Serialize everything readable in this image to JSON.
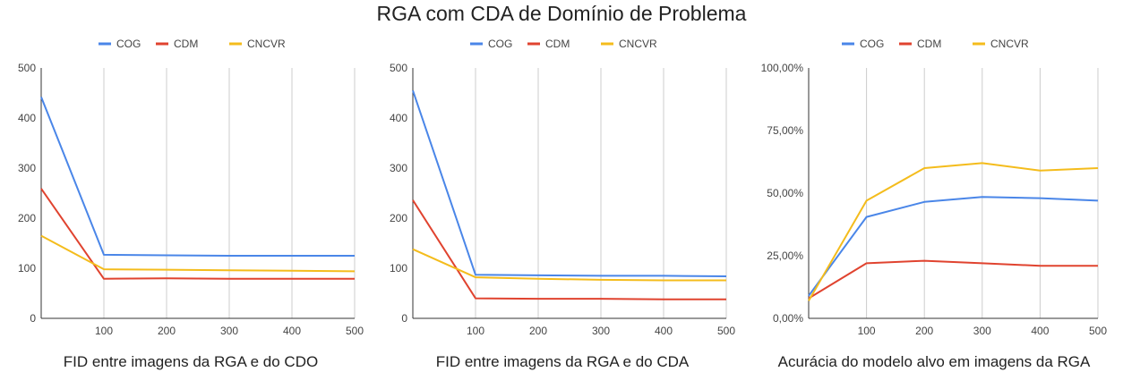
{
  "title": "RGA com CDA de Domínio de Problema",
  "colors": {
    "COG": "#4a86e8",
    "CDM": "#e0432f",
    "CNCVR": "#f4bc1c",
    "axis": "#333333",
    "grid": "#cccccc"
  },
  "chart_data": [
    {
      "type": "line",
      "xlabel": "FID entre imagens da RGA e do CDO",
      "ylabel": "",
      "x": [
        0,
        100,
        200,
        300,
        400,
        500
      ],
      "xticks": [
        "100",
        "200",
        "300",
        "400",
        "500"
      ],
      "xlim": [
        0,
        500
      ],
      "ylim": [
        0,
        500
      ],
      "yticks": [
        "0",
        "100",
        "200",
        "300",
        "400",
        "500"
      ],
      "grid": "vertical",
      "legend": "top-center",
      "series": [
        {
          "name": "COG",
          "values": [
            442,
            127,
            126,
            125,
            125,
            125
          ]
        },
        {
          "name": "CDM",
          "values": [
            259,
            79,
            80,
            79,
            79,
            79
          ]
        },
        {
          "name": "CNCVR",
          "values": [
            165,
            98,
            97,
            96,
            95,
            94
          ]
        }
      ]
    },
    {
      "type": "line",
      "xlabel": "FID entre imagens da RGA e do CDA",
      "ylabel": "",
      "x": [
        0,
        100,
        200,
        300,
        400,
        500
      ],
      "xticks": [
        "100",
        "200",
        "300",
        "400",
        "500"
      ],
      "xlim": [
        0,
        500
      ],
      "ylim": [
        0,
        500
      ],
      "yticks": [
        "0",
        "100",
        "200",
        "300",
        "400",
        "500"
      ],
      "grid": "vertical",
      "legend": "top-center",
      "series": [
        {
          "name": "COG",
          "values": [
            455,
            87,
            86,
            85,
            85,
            84
          ]
        },
        {
          "name": "CDM",
          "values": [
            236,
            40,
            39,
            39,
            38,
            38
          ]
        },
        {
          "name": "CNCVR",
          "values": [
            138,
            82,
            79,
            77,
            76,
            76
          ]
        }
      ]
    },
    {
      "type": "line",
      "xlabel": "Acurácia do modelo alvo em imagens da RGA",
      "ylabel": "",
      "x": [
        0,
        100,
        200,
        300,
        400,
        500
      ],
      "xticks": [
        "100",
        "200",
        "300",
        "400",
        "500"
      ],
      "xlim": [
        0,
        500
      ],
      "ylim": [
        0,
        100
      ],
      "yticks": [
        "0,00%",
        "25,00%",
        "50,00%",
        "75,00%",
        "100,00%"
      ],
      "grid": "vertical",
      "legend": "top-center",
      "series": [
        {
          "name": "COG",
          "values": [
            9,
            40.5,
            46.5,
            48.5,
            48,
            47
          ]
        },
        {
          "name": "CDM",
          "values": [
            8,
            22,
            23,
            22,
            21,
            21
          ]
        },
        {
          "name": "CNCVR",
          "values": [
            7,
            47,
            60,
            62,
            59,
            60
          ]
        }
      ]
    }
  ]
}
